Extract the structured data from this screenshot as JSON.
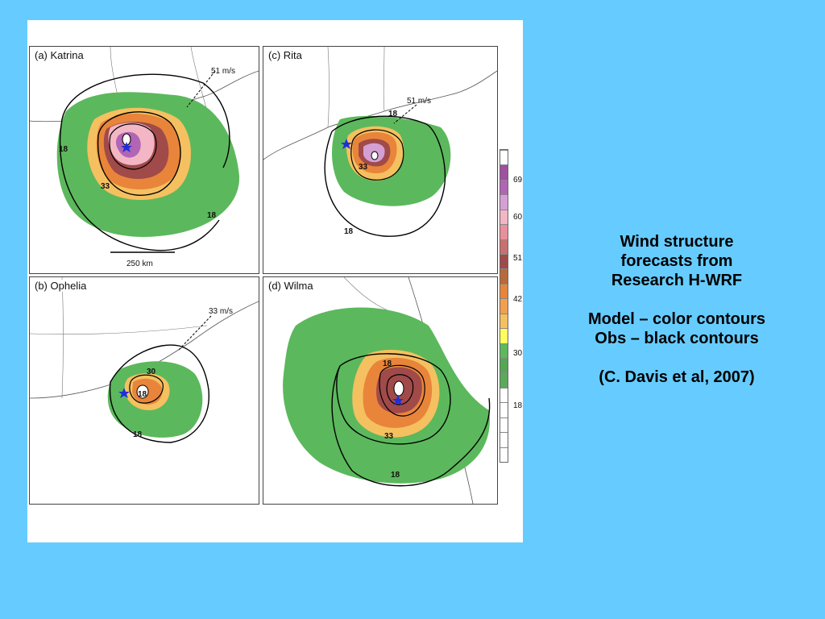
{
  "figure": {
    "panels": [
      {
        "label": "(a) Katrina",
        "annotation": "51 m/s",
        "contour_labels": [
          "18",
          "33",
          "18"
        ],
        "scale_bar": "250 km"
      },
      {
        "label": "(c) Rita",
        "annotation": "51 m/s",
        "contour_labels": [
          "18",
          "33",
          "18"
        ]
      },
      {
        "label": "(b) Ophelia",
        "annotation": "33 m/s",
        "contour_labels": [
          "30",
          "18",
          "18"
        ]
      },
      {
        "label": "(d) Wilma",
        "annotation": "",
        "contour_labels": [
          "18",
          "33",
          "18"
        ]
      }
    ],
    "colorbar": {
      "ticks": [
        "69",
        "60",
        "51",
        "42",
        "30",
        "18"
      ],
      "colors": [
        "#ffffff",
        "#a050a0",
        "#b065b5",
        "#d4a0d4",
        "#f3b6c4",
        "#e8909c",
        "#c87070",
        "#a04a4a",
        "#b86a3a",
        "#e8853a",
        "#f0a050",
        "#f5c060",
        "#ffff60",
        "#5cb85c",
        "#52a852",
        "#5aaa5a",
        "#ffffff",
        "#ffffff",
        "#ffffff",
        "#ffffff",
        "#ffffff"
      ]
    }
  },
  "caption": {
    "line1": "Wind structure",
    "line2": "forecasts from",
    "line3": "Research H-WRF",
    "line4": "Model – color contours",
    "line5": "Obs – black contours",
    "line6": "(C. Davis et al, 2007)"
  }
}
